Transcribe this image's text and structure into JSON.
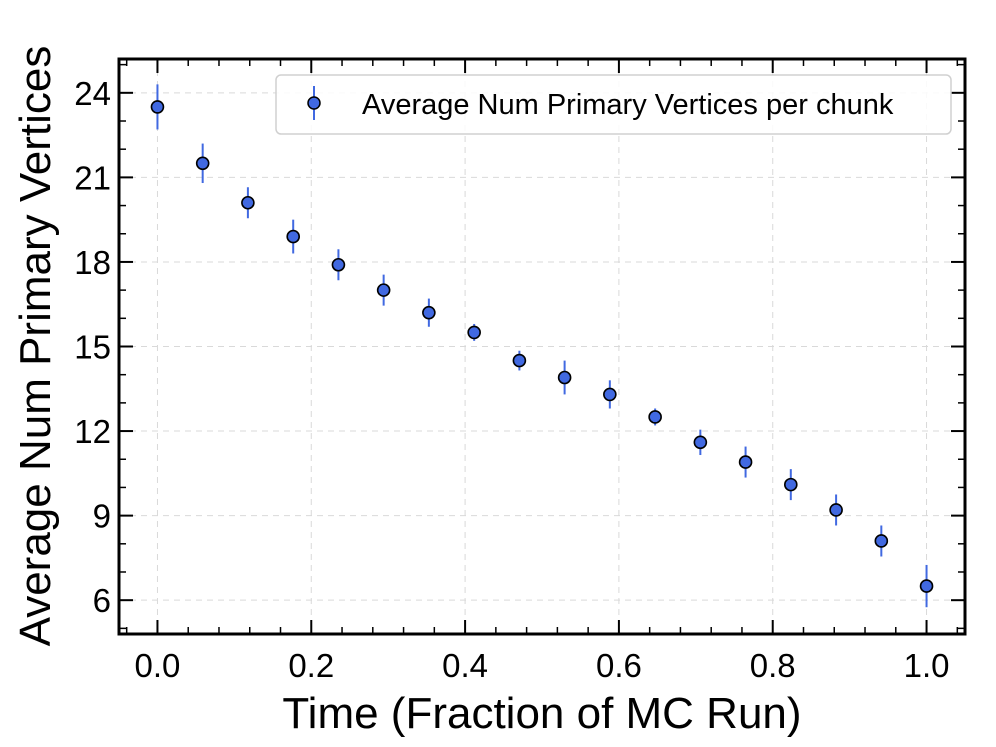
{
  "chart_data": {
    "type": "scatter",
    "title": "",
    "xlabel": "Time (Fraction of MC Run)",
    "ylabel": "Average Num Primary Vertices",
    "xlim": [
      -0.05,
      1.05
    ],
    "ylim": [
      4.8,
      25.2
    ],
    "xticks": [
      "0.0",
      "0.2",
      "0.4",
      "0.6",
      "0.8",
      "1.0"
    ],
    "yticks": [
      "6",
      "9",
      "12",
      "15",
      "18",
      "21",
      "24"
    ],
    "grid": true,
    "legend_position": "top-right",
    "marker_color": "#4169e1",
    "errorbar_color": "#4169e1",
    "series": [
      {
        "name": "Average Num Primary Vertices per chunk",
        "x": [
          0.0,
          0.0588,
          0.1176,
          0.1765,
          0.2353,
          0.2941,
          0.3529,
          0.4118,
          0.4706,
          0.5294,
          0.5882,
          0.6471,
          0.7059,
          0.7647,
          0.8235,
          0.8824,
          0.9412,
          1.0
        ],
        "y": [
          23.5,
          21.5,
          20.1,
          18.9,
          17.9,
          17.0,
          16.2,
          15.5,
          14.5,
          13.9,
          13.3,
          12.5,
          11.6,
          10.9,
          10.1,
          9.2,
          8.1,
          6.5
        ],
        "yerr": [
          0.8,
          0.7,
          0.55,
          0.6,
          0.55,
          0.55,
          0.5,
          0.3,
          0.35,
          0.6,
          0.5,
          0.3,
          0.45,
          0.55,
          0.55,
          0.55,
          0.55,
          0.75
        ]
      }
    ]
  }
}
